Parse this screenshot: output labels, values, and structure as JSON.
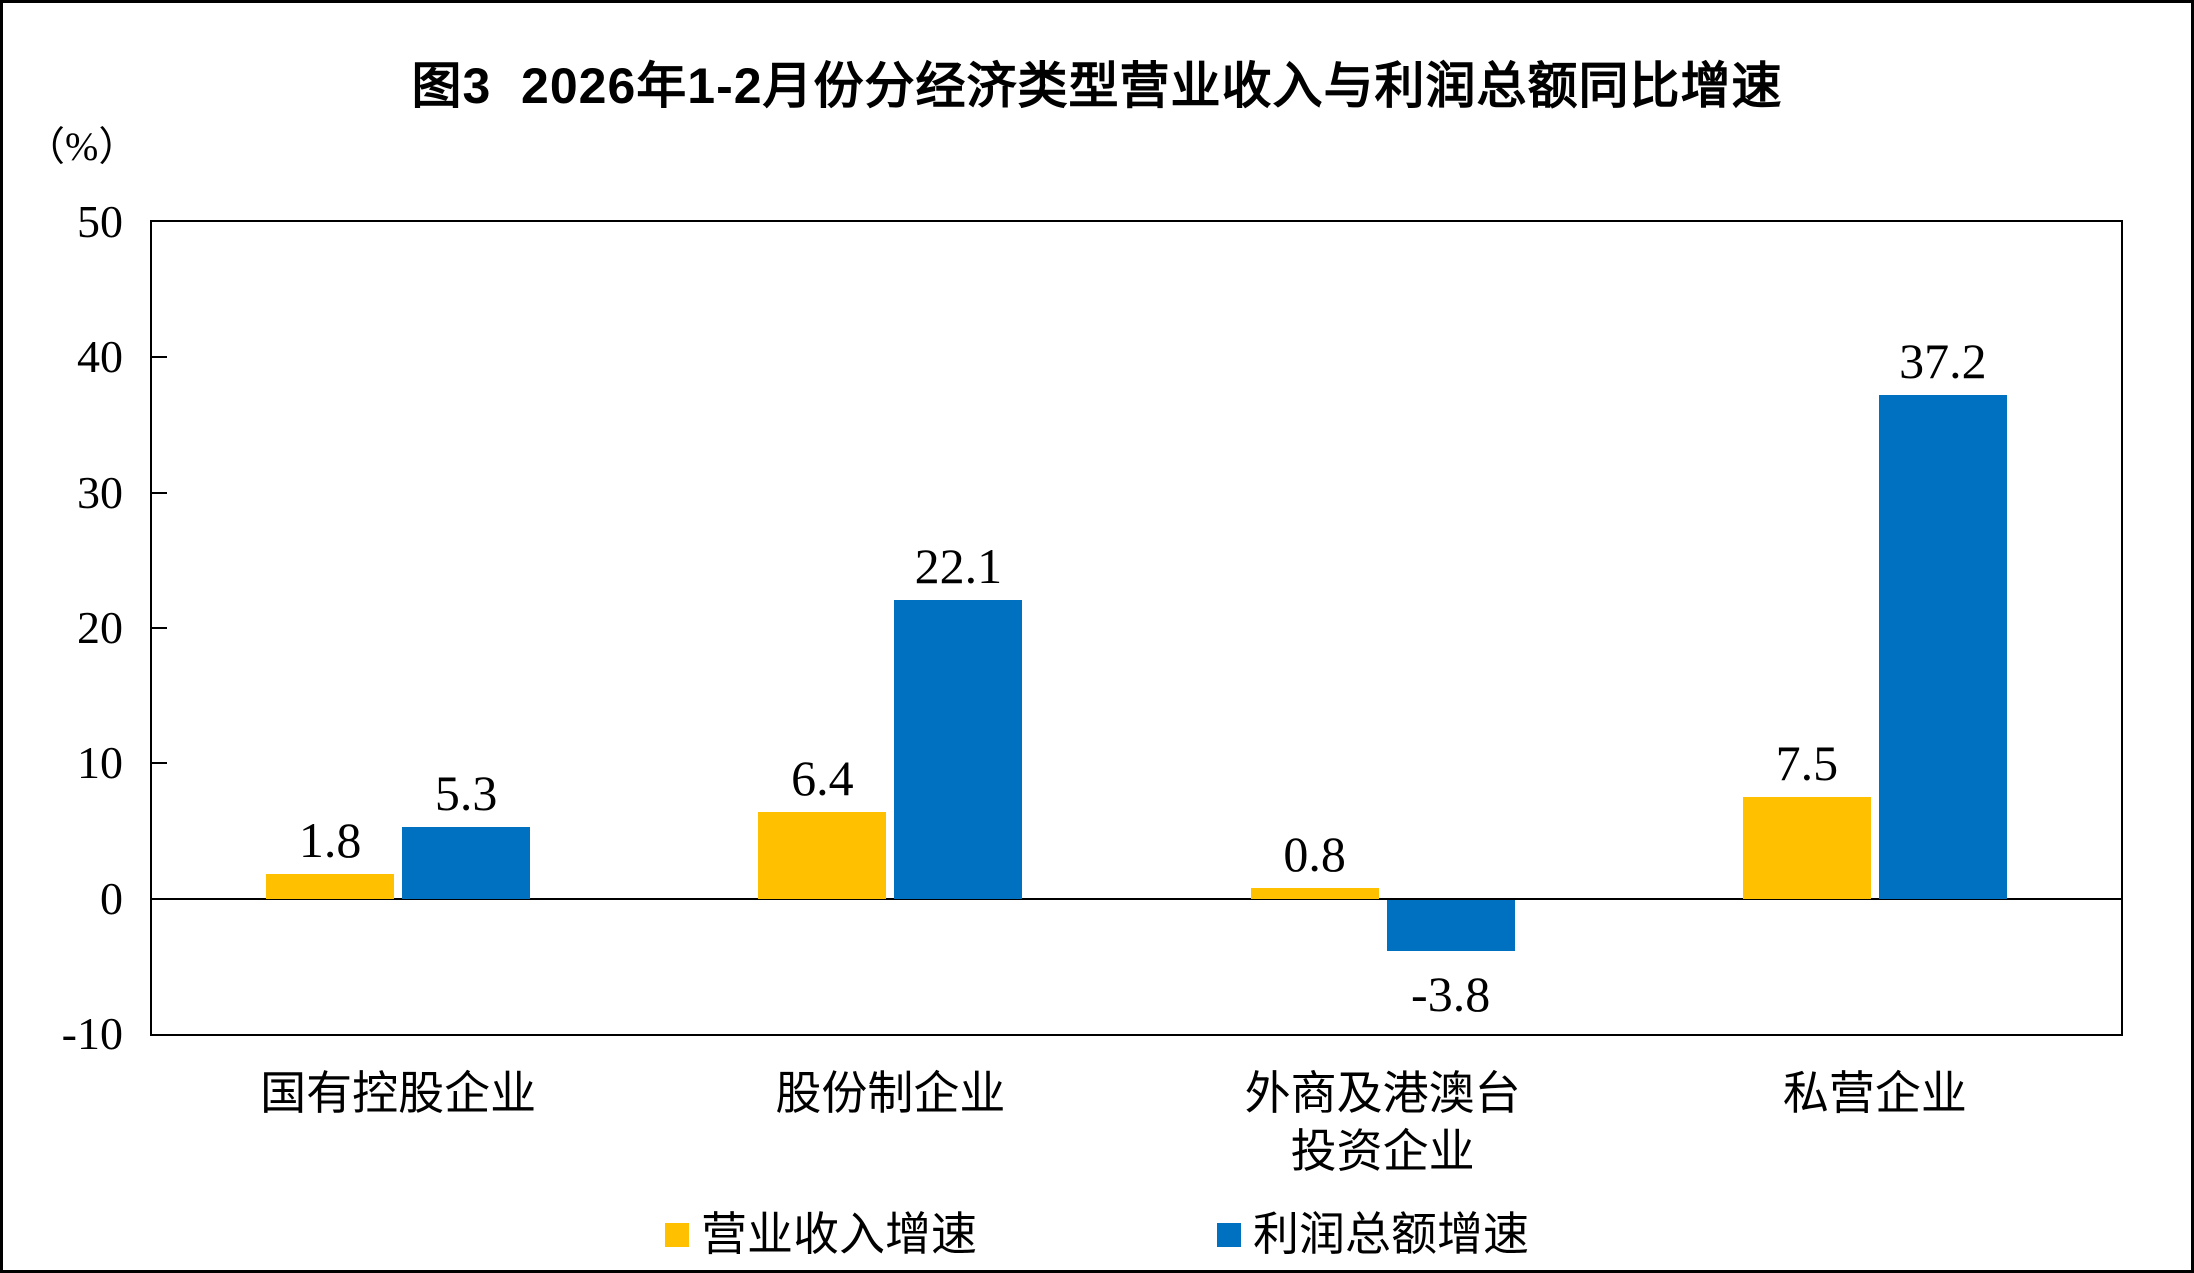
{
  "figure": {
    "title": "图3  2026年1-2月份分经济类型营业收入与利润总额同比增速",
    "unit_label": "（%）"
  },
  "chart_data": {
    "type": "bar",
    "categories": [
      "国有控股企业",
      "股份制企业",
      "外商及港澳台投资企业",
      "私营企业"
    ],
    "category_lines": [
      [
        "国有控股企业"
      ],
      [
        "股份制企业"
      ],
      [
        "外商及港澳台",
        "投资企业"
      ],
      [
        "私营企业"
      ]
    ],
    "series": [
      {
        "name": "营业收入增速",
        "color": "#FFC000",
        "values": [
          1.8,
          6.4,
          0.8,
          7.5
        ]
      },
      {
        "name": "利润总额增速",
        "color": "#0070C0",
        "values": [
          5.3,
          22.1,
          -3.8,
          37.2
        ]
      }
    ],
    "title": "图3  2026年1-2月份分经济类型营业收入与利润总额同比增速",
    "xlabel": "",
    "ylabel": "（%）",
    "ylim": [
      -10,
      50
    ],
    "yticks": [
      50,
      40,
      30,
      20,
      10,
      0,
      -10
    ],
    "grid": false,
    "zero_line": true,
    "data_labels": true,
    "legend_position": "bottom",
    "colors": {
      "revenue": "#FFC000",
      "profit": "#0070C0",
      "axis": "#000000"
    }
  },
  "legend": {
    "items": [
      {
        "label": "营业收入增速",
        "color": "#FFC000"
      },
      {
        "label": "利润总额增速",
        "color": "#0070C0"
      }
    ]
  }
}
